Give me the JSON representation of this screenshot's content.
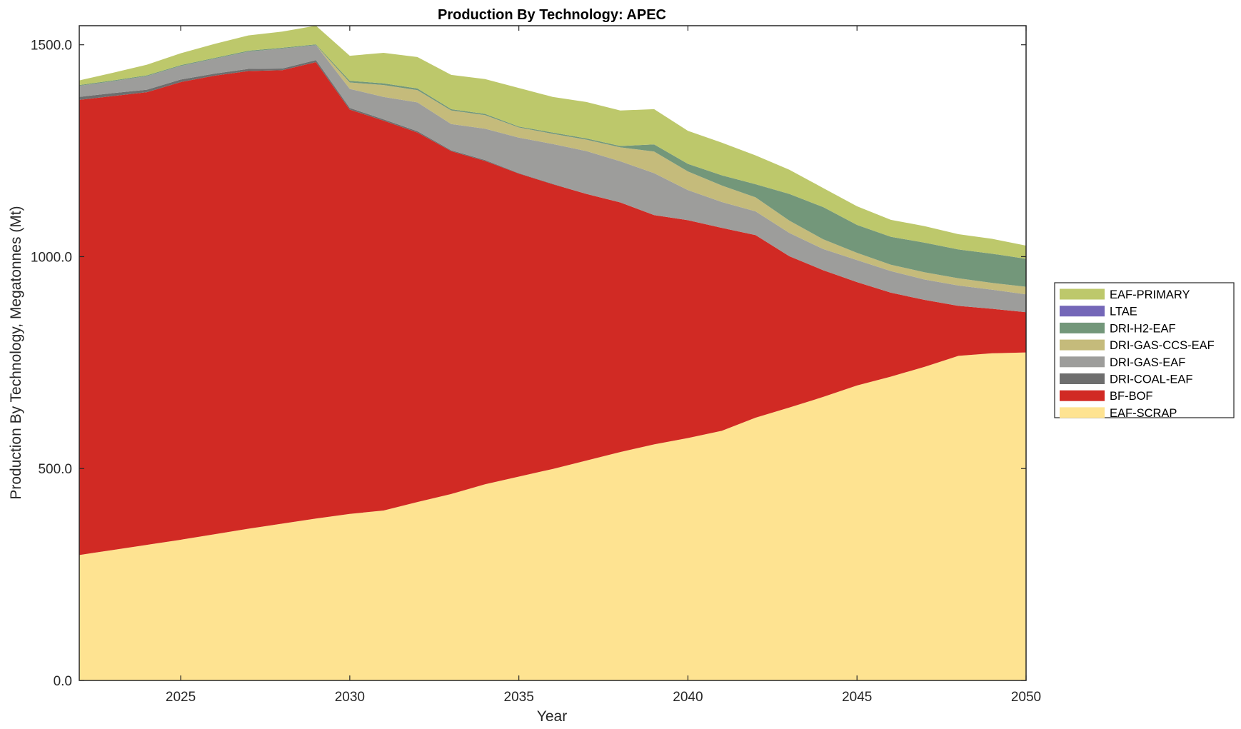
{
  "chart_data": {
    "type": "area",
    "stacked": true,
    "title": "Production By Technology: APEC",
    "xlabel": "Year",
    "ylabel": "Production By Technology, Megatonnes (Mt)",
    "xlim": [
      2022,
      2050
    ],
    "ylim": [
      0,
      1545
    ],
    "xticks": [
      2025,
      2030,
      2035,
      2040,
      2045,
      2050
    ],
    "xtick_labels": [
      "2025",
      "2030",
      "2035",
      "2040",
      "2045",
      "2050"
    ],
    "yticks": [
      0,
      500,
      1000,
      1500
    ],
    "ytick_labels": [
      "0.0",
      "500.0",
      "1000.0",
      "1500.0"
    ],
    "grid": false,
    "legend_position": "outside-right",
    "x": [
      2022,
      2023,
      2024,
      2025,
      2026,
      2027,
      2028,
      2029,
      2030,
      2031,
      2032,
      2033,
      2034,
      2035,
      2036,
      2037,
      2038,
      2039,
      2040,
      2041,
      2042,
      2043,
      2044,
      2045,
      2046,
      2047,
      2048,
      2049,
      2050
    ],
    "series": [
      {
        "name": "EAF-SCRAP",
        "color": "#fee391",
        "values": [
          296,
          308,
          320,
          332,
          345,
          358,
          370,
          382,
          393,
          401,
          421,
          440,
          463,
          481,
          499,
          519,
          539,
          557,
          572,
          589,
          620,
          644,
          669,
          696,
          717,
          740,
          766,
          772,
          774
        ]
      },
      {
        "name": "BF-BOF",
        "color": "#d12a24",
        "values": [
          1074,
          1071,
          1068,
          1080,
          1082,
          1080,
          1070,
          1077,
          954,
          920,
          872,
          809,
          763,
          715,
          672,
          629,
          589,
          541,
          514,
          479,
          431,
          357,
          299,
          244,
          198,
          158,
          118,
          105,
          95
        ]
      },
      {
        "name": "DRI-COAL-EAF",
        "color": "#6e6e6e",
        "values": [
          7,
          7,
          6,
          6,
          5,
          5,
          4,
          5,
          4,
          3,
          3,
          2,
          2,
          1,
          1,
          0,
          0,
          0,
          0,
          0,
          0,
          0,
          0,
          0,
          0,
          0,
          0,
          0,
          0
        ]
      },
      {
        "name": "DRI-GAS-EAF",
        "color": "#9d9d9b",
        "values": [
          26,
          28,
          32,
          32,
          35,
          41,
          47,
          35,
          45,
          53,
          68,
          62,
          74,
          84,
          94,
          101,
          97,
          99,
          71,
          61,
          56,
          55,
          50,
          52,
          51,
          48,
          48,
          45,
          42
        ]
      },
      {
        "name": "DRI-GAS-CCS-EAF",
        "color": "#c5bb7b",
        "values": [
          0,
          0,
          0,
          0,
          0,
          0,
          0,
          0,
          15,
          28,
          29,
          32,
          32,
          24,
          24,
          27,
          33,
          51,
          44,
          39,
          33,
          29,
          23,
          17,
          15,
          17,
          17,
          16,
          18
        ]
      },
      {
        "name": "DRI-H2-EAF",
        "color": "#73977a",
        "values": [
          2,
          2,
          2,
          2,
          2,
          2,
          2,
          2,
          4,
          4,
          4,
          3,
          3,
          2,
          3,
          3,
          3,
          17,
          18,
          24,
          31,
          63,
          76,
          66,
          66,
          70,
          68,
          69,
          66
        ]
      },
      {
        "name": "LTAE",
        "color": "#7467b8",
        "values": [
          0,
          0,
          0,
          0,
          0,
          0,
          0,
          0,
          0,
          0,
          0,
          0,
          0,
          0,
          0,
          0,
          0,
          0,
          0,
          0,
          0,
          0,
          0,
          0,
          0,
          0,
          0,
          0,
          0
        ]
      },
      {
        "name": "EAF-PRIMARY",
        "color": "#bdc86b",
        "values": [
          11,
          18,
          25,
          28,
          33,
          36,
          38,
          44,
          59,
          72,
          74,
          81,
          82,
          91,
          84,
          86,
          84,
          83,
          78,
          77,
          68,
          57,
          45,
          44,
          40,
          39,
          36,
          35,
          31
        ]
      }
    ],
    "legend_order": [
      "EAF-PRIMARY",
      "LTAE",
      "DRI-H2-EAF",
      "DRI-GAS-CCS-EAF",
      "DRI-GAS-EAF",
      "DRI-COAL-EAF",
      "BF-BOF",
      "EAF-SCRAP"
    ]
  }
}
